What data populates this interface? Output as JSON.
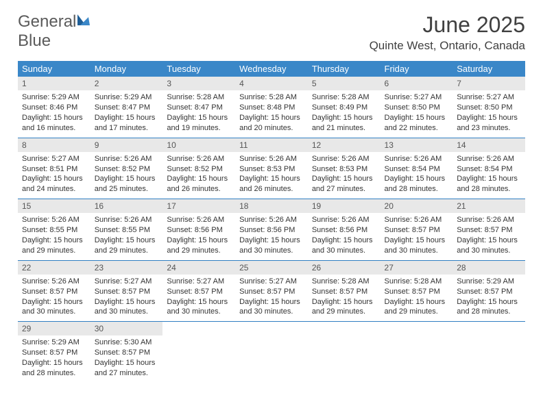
{
  "brand": {
    "name1": "General",
    "name2": "Blue"
  },
  "title": "June 2025",
  "location": "Quinte West, Ontario, Canada",
  "day_headers": [
    "Sunday",
    "Monday",
    "Tuesday",
    "Wednesday",
    "Thursday",
    "Friday",
    "Saturday"
  ],
  "colors": {
    "header_bg": "#3a87c8",
    "header_fg": "#ffffff",
    "daynum_bg": "#e8e8e8",
    "row_border": "#2f7ec2",
    "brand_blue": "#2f7ec2",
    "text_gray": "#404040"
  },
  "weeks": [
    [
      {
        "n": "1",
        "sr": "Sunrise: 5:29 AM",
        "ss": "Sunset: 8:46 PM",
        "d1": "Daylight: 15 hours",
        "d2": "and 16 minutes."
      },
      {
        "n": "2",
        "sr": "Sunrise: 5:29 AM",
        "ss": "Sunset: 8:47 PM",
        "d1": "Daylight: 15 hours",
        "d2": "and 17 minutes."
      },
      {
        "n": "3",
        "sr": "Sunrise: 5:28 AM",
        "ss": "Sunset: 8:47 PM",
        "d1": "Daylight: 15 hours",
        "d2": "and 19 minutes."
      },
      {
        "n": "4",
        "sr": "Sunrise: 5:28 AM",
        "ss": "Sunset: 8:48 PM",
        "d1": "Daylight: 15 hours",
        "d2": "and 20 minutes."
      },
      {
        "n": "5",
        "sr": "Sunrise: 5:28 AM",
        "ss": "Sunset: 8:49 PM",
        "d1": "Daylight: 15 hours",
        "d2": "and 21 minutes."
      },
      {
        "n": "6",
        "sr": "Sunrise: 5:27 AM",
        "ss": "Sunset: 8:50 PM",
        "d1": "Daylight: 15 hours",
        "d2": "and 22 minutes."
      },
      {
        "n": "7",
        "sr": "Sunrise: 5:27 AM",
        "ss": "Sunset: 8:50 PM",
        "d1": "Daylight: 15 hours",
        "d2": "and 23 minutes."
      }
    ],
    [
      {
        "n": "8",
        "sr": "Sunrise: 5:27 AM",
        "ss": "Sunset: 8:51 PM",
        "d1": "Daylight: 15 hours",
        "d2": "and 24 minutes."
      },
      {
        "n": "9",
        "sr": "Sunrise: 5:26 AM",
        "ss": "Sunset: 8:52 PM",
        "d1": "Daylight: 15 hours",
        "d2": "and 25 minutes."
      },
      {
        "n": "10",
        "sr": "Sunrise: 5:26 AM",
        "ss": "Sunset: 8:52 PM",
        "d1": "Daylight: 15 hours",
        "d2": "and 26 minutes."
      },
      {
        "n": "11",
        "sr": "Sunrise: 5:26 AM",
        "ss": "Sunset: 8:53 PM",
        "d1": "Daylight: 15 hours",
        "d2": "and 26 minutes."
      },
      {
        "n": "12",
        "sr": "Sunrise: 5:26 AM",
        "ss": "Sunset: 8:53 PM",
        "d1": "Daylight: 15 hours",
        "d2": "and 27 minutes."
      },
      {
        "n": "13",
        "sr": "Sunrise: 5:26 AM",
        "ss": "Sunset: 8:54 PM",
        "d1": "Daylight: 15 hours",
        "d2": "and 28 minutes."
      },
      {
        "n": "14",
        "sr": "Sunrise: 5:26 AM",
        "ss": "Sunset: 8:54 PM",
        "d1": "Daylight: 15 hours",
        "d2": "and 28 minutes."
      }
    ],
    [
      {
        "n": "15",
        "sr": "Sunrise: 5:26 AM",
        "ss": "Sunset: 8:55 PM",
        "d1": "Daylight: 15 hours",
        "d2": "and 29 minutes."
      },
      {
        "n": "16",
        "sr": "Sunrise: 5:26 AM",
        "ss": "Sunset: 8:55 PM",
        "d1": "Daylight: 15 hours",
        "d2": "and 29 minutes."
      },
      {
        "n": "17",
        "sr": "Sunrise: 5:26 AM",
        "ss": "Sunset: 8:56 PM",
        "d1": "Daylight: 15 hours",
        "d2": "and 29 minutes."
      },
      {
        "n": "18",
        "sr": "Sunrise: 5:26 AM",
        "ss": "Sunset: 8:56 PM",
        "d1": "Daylight: 15 hours",
        "d2": "and 30 minutes."
      },
      {
        "n": "19",
        "sr": "Sunrise: 5:26 AM",
        "ss": "Sunset: 8:56 PM",
        "d1": "Daylight: 15 hours",
        "d2": "and 30 minutes."
      },
      {
        "n": "20",
        "sr": "Sunrise: 5:26 AM",
        "ss": "Sunset: 8:57 PM",
        "d1": "Daylight: 15 hours",
        "d2": "and 30 minutes."
      },
      {
        "n": "21",
        "sr": "Sunrise: 5:26 AM",
        "ss": "Sunset: 8:57 PM",
        "d1": "Daylight: 15 hours",
        "d2": "and 30 minutes."
      }
    ],
    [
      {
        "n": "22",
        "sr": "Sunrise: 5:26 AM",
        "ss": "Sunset: 8:57 PM",
        "d1": "Daylight: 15 hours",
        "d2": "and 30 minutes."
      },
      {
        "n": "23",
        "sr": "Sunrise: 5:27 AM",
        "ss": "Sunset: 8:57 PM",
        "d1": "Daylight: 15 hours",
        "d2": "and 30 minutes."
      },
      {
        "n": "24",
        "sr": "Sunrise: 5:27 AM",
        "ss": "Sunset: 8:57 PM",
        "d1": "Daylight: 15 hours",
        "d2": "and 30 minutes."
      },
      {
        "n": "25",
        "sr": "Sunrise: 5:27 AM",
        "ss": "Sunset: 8:57 PM",
        "d1": "Daylight: 15 hours",
        "d2": "and 30 minutes."
      },
      {
        "n": "26",
        "sr": "Sunrise: 5:28 AM",
        "ss": "Sunset: 8:57 PM",
        "d1": "Daylight: 15 hours",
        "d2": "and 29 minutes."
      },
      {
        "n": "27",
        "sr": "Sunrise: 5:28 AM",
        "ss": "Sunset: 8:57 PM",
        "d1": "Daylight: 15 hours",
        "d2": "and 29 minutes."
      },
      {
        "n": "28",
        "sr": "Sunrise: 5:29 AM",
        "ss": "Sunset: 8:57 PM",
        "d1": "Daylight: 15 hours",
        "d2": "and 28 minutes."
      }
    ],
    [
      {
        "n": "29",
        "sr": "Sunrise: 5:29 AM",
        "ss": "Sunset: 8:57 PM",
        "d1": "Daylight: 15 hours",
        "d2": "and 28 minutes."
      },
      {
        "n": "30",
        "sr": "Sunrise: 5:30 AM",
        "ss": "Sunset: 8:57 PM",
        "d1": "Daylight: 15 hours",
        "d2": "and 27 minutes."
      },
      null,
      null,
      null,
      null,
      null
    ]
  ]
}
